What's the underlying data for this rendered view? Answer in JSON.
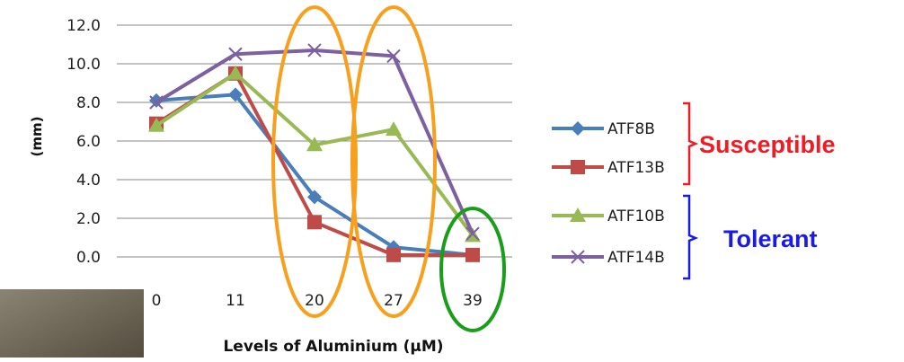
{
  "chart_data": {
    "type": "line",
    "categories": [
      "0",
      "11",
      "20",
      "27",
      "39"
    ],
    "ylim": [
      0,
      12
    ],
    "yticks": [
      "0.0",
      "2.0",
      "4.0",
      "6.0",
      "8.0",
      "10.0",
      "12.0"
    ],
    "ylabel": "(mm)",
    "xlabel": "Levels of Aluminium (µM)",
    "grid": true,
    "legend_position": "right",
    "series": [
      {
        "name": "ATF8B",
        "color": "#4a7ebb",
        "marker": "diamond",
        "values": [
          8.1,
          8.4,
          3.1,
          0.5,
          0.1
        ]
      },
      {
        "name": "ATF13B",
        "color": "#be4b48",
        "marker": "square",
        "values": [
          6.9,
          9.5,
          1.8,
          0.1,
          0.1
        ]
      },
      {
        "name": "ATF10B",
        "color": "#98b954",
        "marker": "triangle",
        "values": [
          6.8,
          9.5,
          5.8,
          6.6,
          1.1
        ]
      },
      {
        "name": "ATF14B",
        "color": "#7d60a0",
        "marker": "cross",
        "values": [
          8.0,
          10.5,
          10.7,
          10.4,
          1.2
        ]
      }
    ],
    "annotations": {
      "susceptible": {
        "label": "Susceptible",
        "color": "#ee1c25",
        "series": [
          "ATF8B",
          "ATF13B"
        ]
      },
      "tolerant": {
        "label": "Tolerant",
        "color": "#1a1ae6",
        "series": [
          "ATF10B",
          "ATF14B"
        ]
      }
    },
    "highlights": {
      "orange_color": "#f7a01d",
      "green_color": "#1a9e1a",
      "orange_categories": [
        "20",
        "27"
      ],
      "green_categories": [
        "39"
      ]
    }
  }
}
